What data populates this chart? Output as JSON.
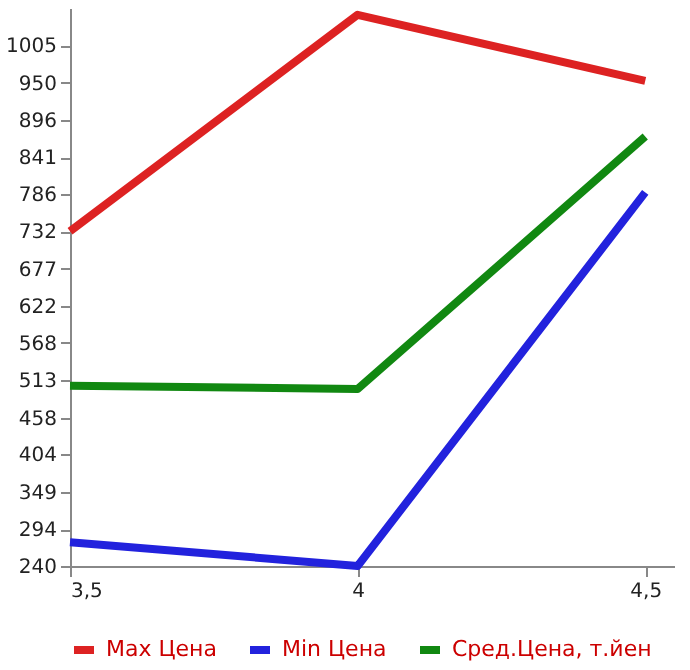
{
  "chart_data": {
    "type": "line",
    "x": [
      3.5,
      4,
      4.5
    ],
    "series": [
      {
        "name": "Max Цена",
        "color": "#dd2222",
        "values": [
          732,
          1050,
          953
        ]
      },
      {
        "name": "Min Цена",
        "color": "#2222dd",
        "values": [
          275,
          240,
          789
        ]
      },
      {
        "name": "Сред.Цена, т.йен",
        "color": "#118811",
        "values": [
          505,
          500,
          871
        ]
      }
    ],
    "xlim": [
      3.5,
      4.55
    ],
    "xticks": [
      {
        "value": 3.5,
        "label": "3,5"
      },
      {
        "value": 4,
        "label": "4"
      },
      {
        "value": 4.5,
        "label": "4,5"
      }
    ],
    "ylim": [
      240,
      1060
    ],
    "yticks": [
      240,
      294,
      349,
      404,
      458,
      513,
      568,
      622,
      677,
      732,
      786,
      841,
      896,
      950,
      1005
    ],
    "grid": false,
    "legend": "bottom",
    "marker": "none",
    "line_style": "solid"
  }
}
